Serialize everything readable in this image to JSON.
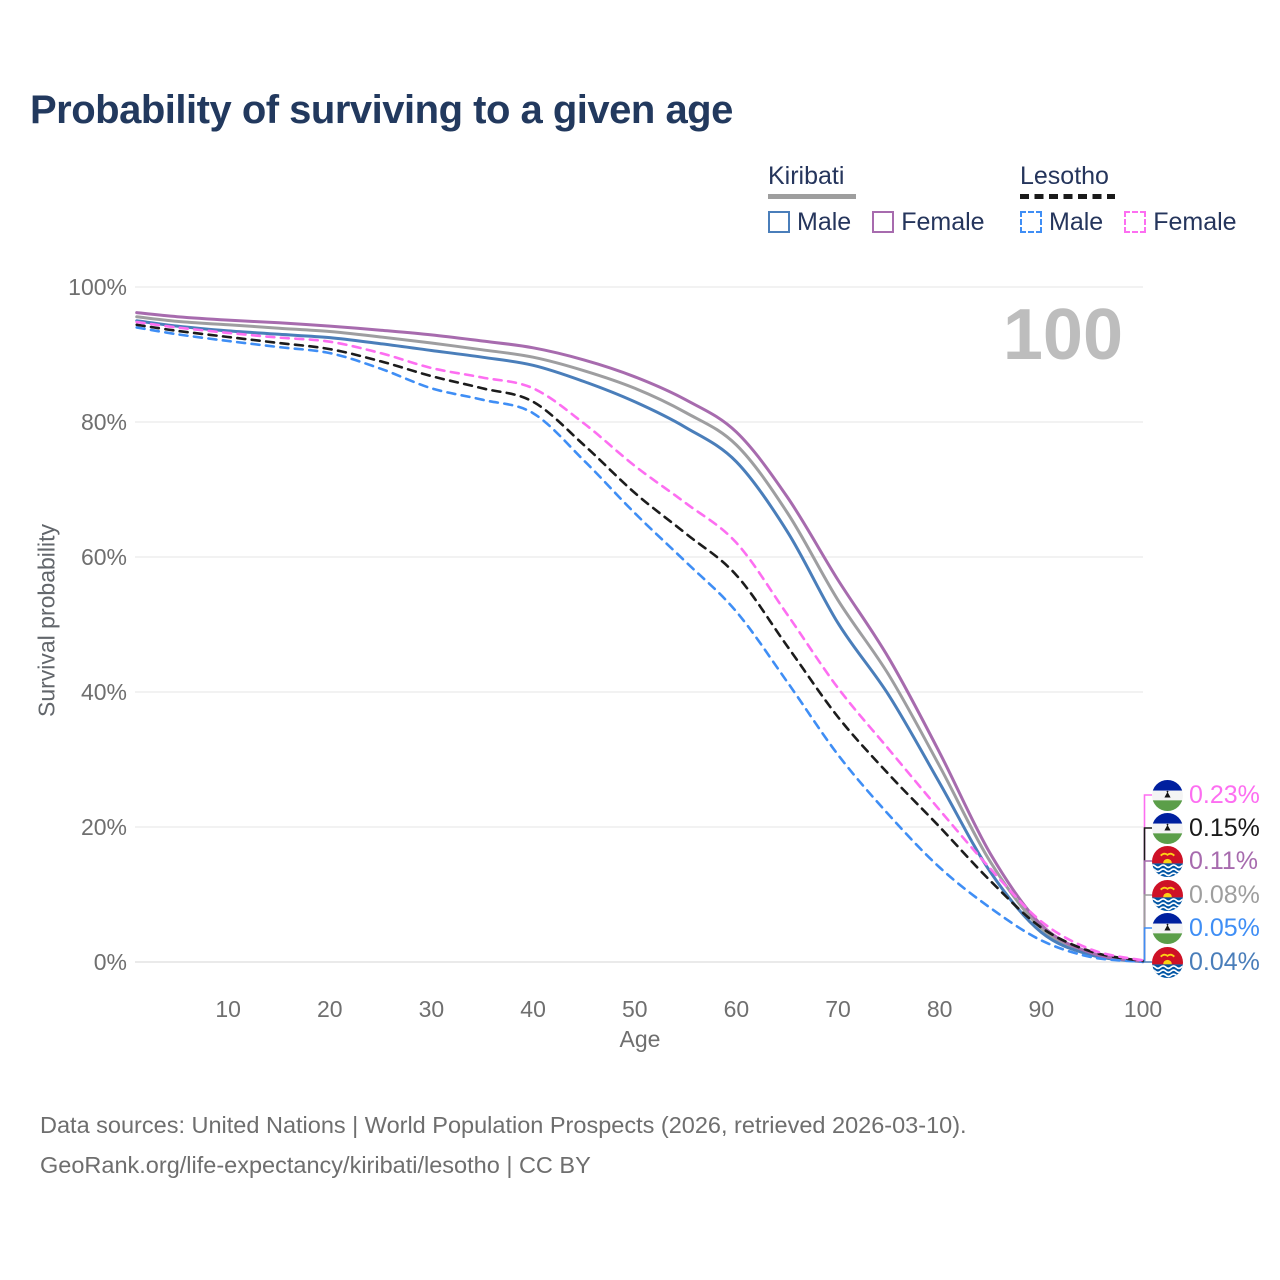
{
  "title": "Probability of surviving to a given age",
  "watermark_age": "100",
  "legend": {
    "groups": [
      {
        "name": "Kiribati",
        "line_style": "solid",
        "underline_color": "#9e9e9e",
        "items": [
          {
            "label": "Male",
            "color": "#4a7eba"
          },
          {
            "label": "Female",
            "color": "#a76bae"
          }
        ]
      },
      {
        "name": "Lesotho",
        "line_style": "dashed",
        "underline_color": "#1a1a1a",
        "items": [
          {
            "label": "Male",
            "color": "#3f8ef5"
          },
          {
            "label": "Female",
            "color": "#fd6ef1"
          }
        ]
      }
    ]
  },
  "axes": {
    "x_label": "Age",
    "y_label": "Survival probability",
    "x_ticks": [
      "10",
      "20",
      "30",
      "40",
      "50",
      "60",
      "70",
      "80",
      "90",
      "100"
    ],
    "y_ticks": [
      "0%",
      "20%",
      "40%",
      "60%",
      "80%",
      "100%"
    ],
    "grid": "horizontal"
  },
  "chart_data": {
    "type": "line",
    "title": "Probability of surviving to a given age",
    "xlabel": "Age",
    "ylabel": "Survival probability",
    "unit": "percent",
    "xlim": [
      0,
      100
    ],
    "ylim": [
      0,
      100
    ],
    "grid": "horizontal",
    "legend_position": "top-right",
    "hover_age": 100,
    "x_ages": [
      1,
      5,
      10,
      15,
      20,
      25,
      30,
      35,
      40,
      45,
      50,
      55,
      60,
      65,
      70,
      75,
      80,
      85,
      90,
      95,
      100
    ],
    "series": [
      {
        "name": "Kiribati Female",
        "country": "Kiribati",
        "sex": "female",
        "color": "#a76bae",
        "dash": false,
        "values": [
          96.2,
          95.6,
          95.1,
          94.7,
          94.2,
          93.6,
          92.9,
          92.0,
          91.0,
          89.2,
          86.7,
          83.3,
          78.5,
          68.9,
          56.6,
          45.0,
          31.0,
          16.0,
          5.5,
          1.3,
          0.11
        ],
        "end_label": "0.11%"
      },
      {
        "name": "Kiribati Both sexes",
        "country": "Kiribati",
        "sex": "both",
        "color": "#9e9ea0",
        "dash": false,
        "values": [
          95.6,
          94.9,
          94.4,
          93.9,
          93.4,
          92.6,
          91.7,
          90.7,
          89.6,
          87.6,
          85.0,
          81.4,
          76.6,
          66.6,
          53.6,
          42.5,
          29.0,
          14.8,
          5.0,
          1.15,
          0.08
        ],
        "end_label": "0.08%"
      },
      {
        "name": "Kiribati Male",
        "country": "Kiribati",
        "sex": "male",
        "color": "#4a7eba",
        "dash": false,
        "values": [
          95.0,
          94.2,
          93.5,
          93.0,
          92.5,
          91.6,
          90.6,
          89.6,
          88.4,
          86.0,
          83.0,
          79.2,
          74.1,
          63.8,
          50.2,
          39.5,
          26.5,
          13.3,
          4.4,
          1.0,
          0.04
        ],
        "end_label": "0.04%"
      },
      {
        "name": "Lesotho Female",
        "country": "Lesotho",
        "sex": "female",
        "color": "#fd6ef1",
        "dash": true,
        "values": [
          94.8,
          94.0,
          93.2,
          92.5,
          91.9,
          90.2,
          88.0,
          86.6,
          85.0,
          79.8,
          73.5,
          68.0,
          62.1,
          51.5,
          40.6,
          31.5,
          22.5,
          13.8,
          6.0,
          1.8,
          0.23
        ],
        "end_label": "0.23%"
      },
      {
        "name": "Lesotho Both sexes",
        "country": "Lesotho",
        "sex": "both",
        "color": "#1c1c1c",
        "dash": true,
        "values": [
          94.4,
          93.5,
          92.6,
          91.7,
          90.8,
          89.0,
          86.8,
          85.0,
          83.0,
          76.6,
          69.5,
          63.5,
          57.3,
          46.8,
          36.3,
          27.8,
          20.0,
          12.0,
          5.1,
          1.5,
          0.15
        ],
        "end_label": "0.15%"
      },
      {
        "name": "Lesotho Male",
        "country": "Lesotho",
        "sex": "male",
        "color": "#3f8ef5",
        "dash": true,
        "values": [
          94.0,
          93.0,
          92.0,
          91.1,
          90.2,
          87.9,
          85.0,
          83.3,
          81.3,
          74.3,
          66.5,
          59.3,
          51.9,
          41.5,
          30.7,
          21.8,
          14.0,
          8.0,
          3.2,
          0.7,
          0.05
        ],
        "end_label": "0.05%"
      }
    ]
  },
  "value_labels": [
    {
      "value": "0.23%",
      "color": "#fd6ef1",
      "flag": "lesotho",
      "series": "Lesotho Female"
    },
    {
      "value": "0.15%",
      "color": "#1a1a1a",
      "flag": "lesotho",
      "series": "Lesotho Both sexes"
    },
    {
      "value": "0.11%",
      "color": "#a76bae",
      "flag": "kiribati",
      "series": "Kiribati Female"
    },
    {
      "value": "0.08%",
      "color": "#9e9e9e",
      "flag": "kiribati",
      "series": "Kiribati Both sexes"
    },
    {
      "value": "0.05%",
      "color": "#3f8ef5",
      "flag": "lesotho",
      "series": "Lesotho Male"
    },
    {
      "value": "0.04%",
      "color": "#4a7eba",
      "flag": "kiribati",
      "series": "Kiribati Male"
    }
  ],
  "footer": {
    "line1": "Data sources: United Nations | World Population Prospects (2026, retrieved 2026-03-10).",
    "line2": "GeoRank.org/life-expectancy/kiribati/lesotho | CC BY"
  },
  "colors": {
    "title": "#22395e",
    "axis_text": "#6f6f6f",
    "grid": "#e9e9e9",
    "grid_zero": "#dedede",
    "watermark": "#bdbdbd",
    "footer": "#6e6e6e"
  }
}
